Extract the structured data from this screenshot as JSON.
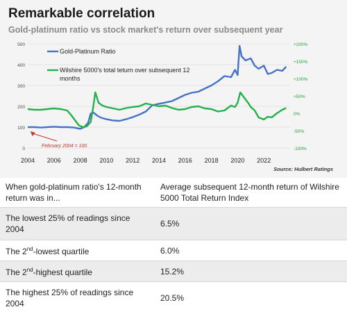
{
  "chart_data": {
    "type": "line",
    "title": "Remarkable correlation",
    "subtitle": "Gold-platinum ratio vs stock market's return over subsequent year",
    "source": "Source: Hulbert Ratings",
    "annotation": "February 2004 = 100",
    "x_ticks": [
      "2004",
      "2006",
      "2008",
      "2010",
      "2012",
      "2014",
      "2016",
      "2018",
      "2020",
      "2022"
    ],
    "y_left_ticks": [
      "0",
      "100",
      "200",
      "300",
      "400",
      "500"
    ],
    "y_right_ticks": [
      "-100%",
      "-50%",
      "0%",
      "+50%",
      "+100%",
      "+150%",
      "+200%"
    ],
    "ylim_left": [
      0,
      500
    ],
    "ylim_right": [
      -100,
      200
    ],
    "grid": "horizontal",
    "legend_position": "top-left",
    "x_range": [
      2004,
      2024
    ],
    "series": [
      {
        "name": "Gold-Platinum Ratio",
        "axis": "left",
        "color": "#4472c4",
        "x": [
          2004,
          2004.5,
          2005,
          2005.5,
          2006,
          2006.5,
          2007,
          2007.5,
          2008,
          2008.3,
          2008.6,
          2008.8,
          2009,
          2009.3,
          2009.6,
          2010,
          2010.5,
          2011,
          2011.5,
          2012,
          2012.5,
          2013,
          2013.5,
          2014,
          2014.5,
          2015,
          2015.5,
          2016,
          2016.5,
          2017,
          2017.5,
          2018,
          2018.5,
          2019,
          2019.5,
          2019.8,
          2020,
          2020.15,
          2020.3,
          2020.6,
          2021,
          2021.3,
          2021.6,
          2022,
          2022.3,
          2022.6,
          2023,
          2023.4,
          2023.7
        ],
        "y": [
          100,
          100,
          98,
          100,
          102,
          100,
          100,
          98,
          92,
          100,
          120,
          165,
          170,
          155,
          145,
          138,
          132,
          130,
          138,
          148,
          160,
          175,
          205,
          212,
          218,
          225,
          240,
          255,
          265,
          270,
          285,
          300,
          320,
          345,
          340,
          375,
          350,
          490,
          440,
          420,
          430,
          395,
          380,
          395,
          355,
          360,
          375,
          370,
          390
        ]
      },
      {
        "name": "Wilshire 5000's total teturn over subsequent 12 months",
        "axis": "right",
        "color": "#22b04a",
        "x": [
          2004,
          2004.5,
          2005,
          2005.5,
          2006,
          2006.5,
          2007,
          2007.3,
          2007.6,
          2007.9,
          2008.2,
          2008.5,
          2008.8,
          2009.0,
          2009.15,
          2009.4,
          2009.7,
          2010,
          2010.5,
          2011,
          2011.5,
          2012,
          2012.5,
          2013,
          2013.5,
          2014,
          2014.5,
          2015,
          2015.5,
          2016,
          2016.5,
          2017,
          2017.5,
          2018,
          2018.5,
          2019,
          2019.5,
          2019.8,
          2020,
          2020.2,
          2020.5,
          2020.8,
          2021,
          2021.3,
          2021.6,
          2022,
          2022.3,
          2022.6,
          2023,
          2023.4,
          2023.7
        ],
        "y": [
          12,
          10,
          10,
          12,
          14,
          12,
          8,
          -5,
          -20,
          -35,
          -40,
          -38,
          -25,
          20,
          60,
          30,
          22,
          18,
          14,
          10,
          15,
          18,
          20,
          28,
          24,
          20,
          22,
          15,
          10,
          12,
          18,
          20,
          14,
          12,
          5,
          8,
          22,
          18,
          30,
          60,
          45,
          30,
          18,
          8,
          -12,
          -18,
          -10,
          -12,
          0,
          10,
          15
        ]
      }
    ]
  },
  "table": {
    "headers": [
      "When gold-platinum ratio's 12-month return was in...",
      "Average subsequent 12-month return of Wilshire 5000 Total Return Index"
    ],
    "rows": [
      {
        "label": "The lowest 25% of readings since 2004",
        "value": "6.5%"
      },
      {
        "label_pre": "The 2",
        "label_sup": "nd",
        "label_post": "-lowest quartile",
        "value": "6.0%"
      },
      {
        "label_pre": "The 2",
        "label_sup": "nd",
        "label_post": "-highest quartile",
        "value": "15.2%"
      },
      {
        "label": "The highest 25% of readings since 2004",
        "value": "20.5%"
      }
    ]
  }
}
